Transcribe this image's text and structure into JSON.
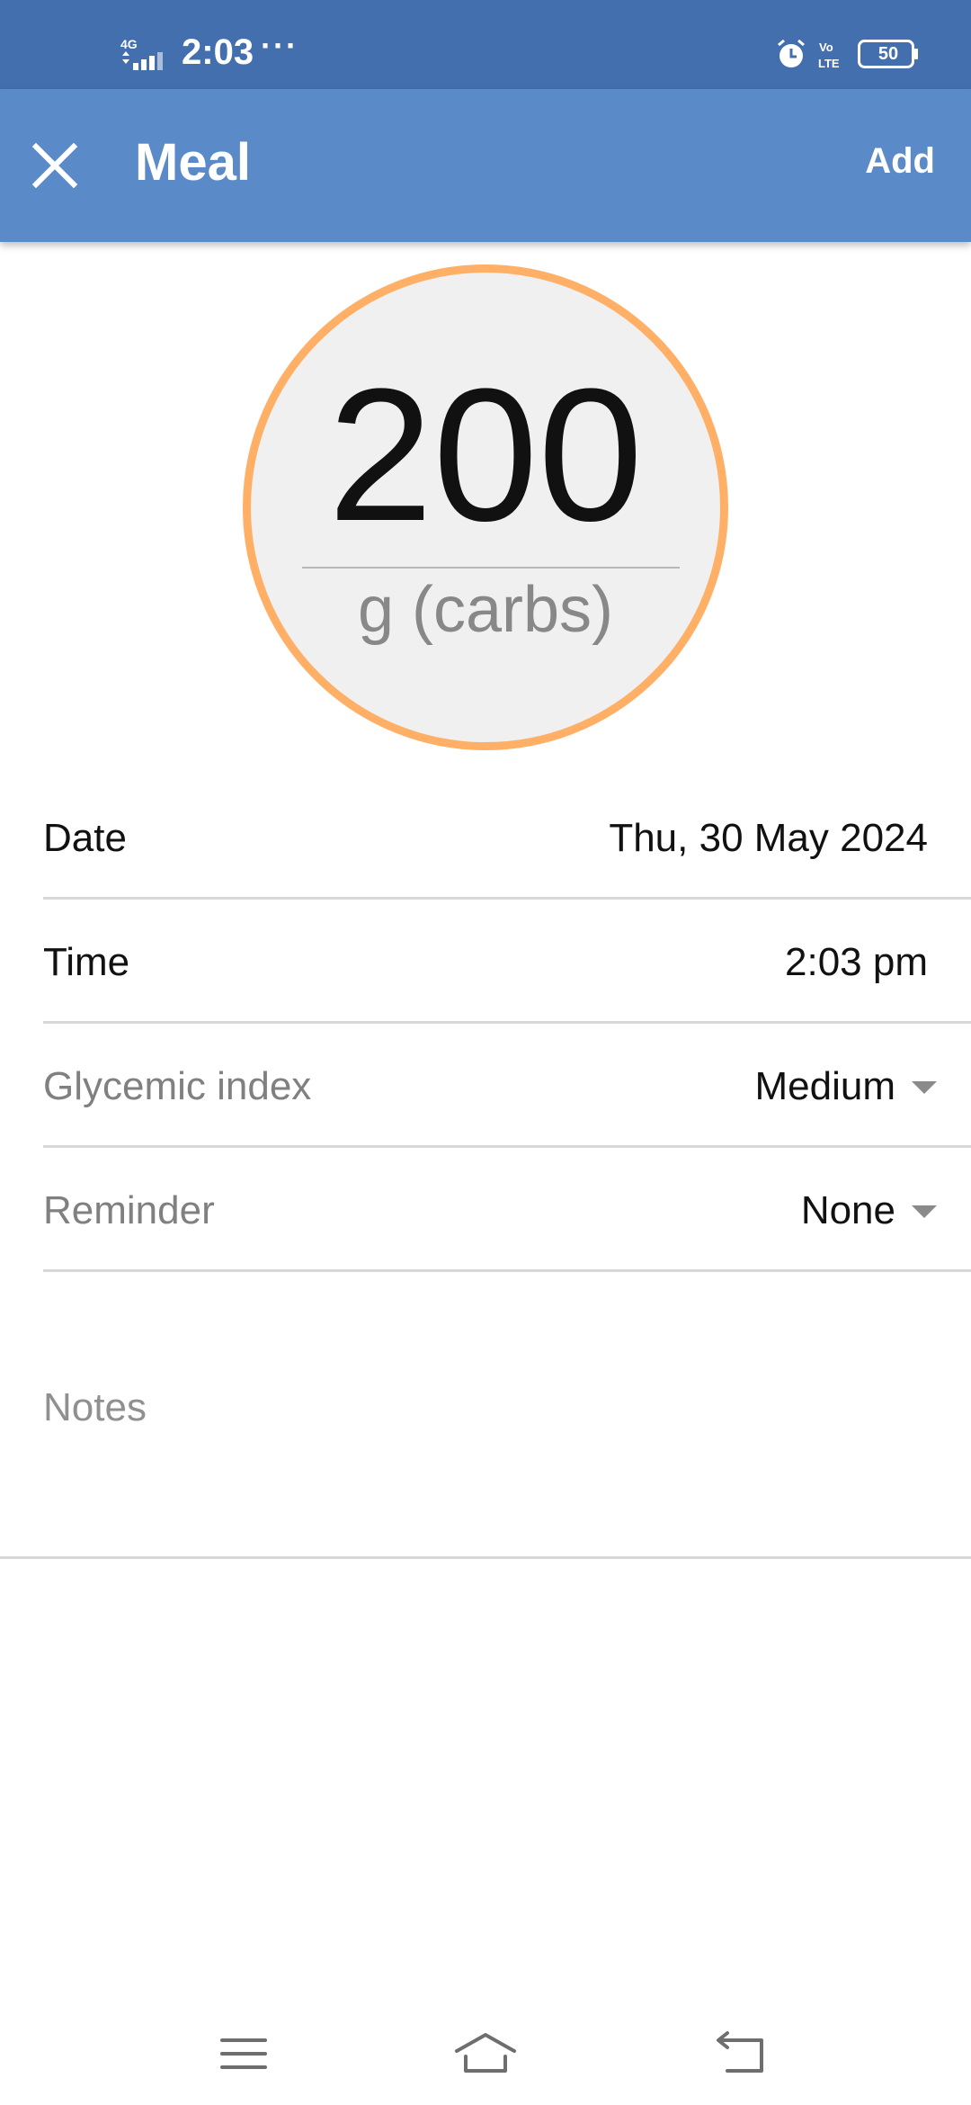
{
  "status_bar": {
    "network": "4G",
    "time": "2:03",
    "more": "···",
    "volte": "VoLTE",
    "battery": "50",
    "icons": [
      "signal-icon",
      "alarm-icon",
      "volte-icon",
      "battery-icon"
    ]
  },
  "app_bar": {
    "close_icon": "close-icon",
    "title": "Meal",
    "add_label": "Add",
    "color": "#5b8ac9"
  },
  "carbs": {
    "value": "200",
    "unit": "g (carbs)",
    "ring_color": "#ffb066"
  },
  "fields": {
    "date": {
      "label": "Date",
      "value": "Thu, 30 May 2024"
    },
    "time": {
      "label": "Time",
      "value": "2:03 pm"
    },
    "glycemic_index": {
      "label": "Glycemic index",
      "value": "Medium"
    },
    "reminder": {
      "label": "Reminder",
      "value": "None"
    }
  },
  "notes": {
    "placeholder": "Notes"
  },
  "nav_bar": {
    "icons": [
      "menu-icon",
      "home-icon",
      "back-icon"
    ]
  }
}
